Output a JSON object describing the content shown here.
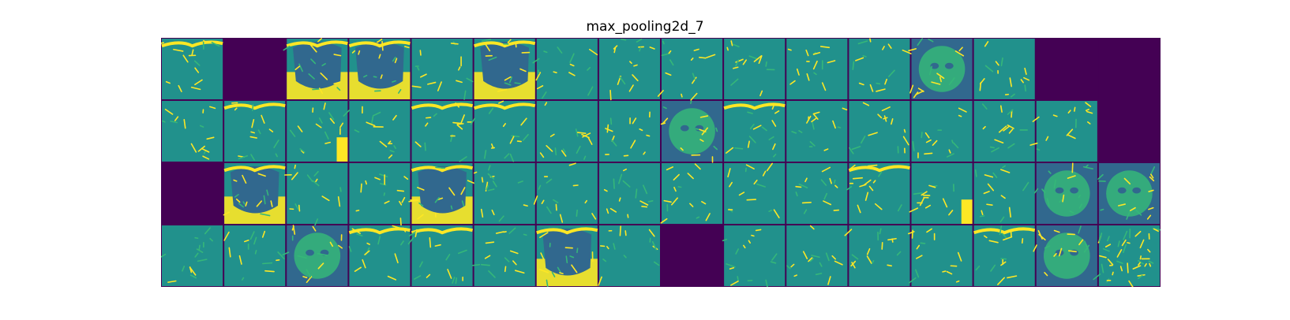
{
  "figure": {
    "title": "max_pooling2d_7"
  },
  "colors": {
    "background": "#ffffff",
    "grid_line": "#440154",
    "viridis_low": "#440154",
    "viridis_mid_blue": "#31688e",
    "viridis_teal": "#21918c",
    "viridis_green": "#35b779",
    "viridis_high": "#fde725"
  },
  "feature_maps": {
    "rows": 4,
    "columns": 16,
    "tiles": [
      [
        "edge-top",
        "dead",
        "cat-bright",
        "cat-bright",
        "edges",
        "cat-bright",
        "edges",
        "edges",
        "edges",
        "edges",
        "edges",
        "edges",
        "cat-face",
        "edges",
        "dead",
        "dead"
      ],
      [
        "edges",
        "edge-top",
        "edge-bottom",
        "edges",
        "edge-top",
        "edge-top",
        "edges",
        "edges",
        "cat-face",
        "edge-top",
        "edges",
        "edges",
        "edges",
        "edges",
        "edges",
        "dead"
      ],
      [
        "dead",
        "cat-bright",
        "edges",
        "edges",
        "cat-bright",
        "edges",
        "edges",
        "edges",
        "edges",
        "edges",
        "edges",
        "edge-top",
        "edge-bottom",
        "edges",
        "cat-face",
        "cat-face"
      ],
      [
        "edges",
        "edges",
        "cat-face",
        "edge-top",
        "edge-top",
        "edges",
        "cat-bright",
        "edges",
        "dead",
        "edges",
        "edges",
        "edges",
        "edges",
        "edge-top",
        "cat-face",
        "noise"
      ]
    ]
  }
}
